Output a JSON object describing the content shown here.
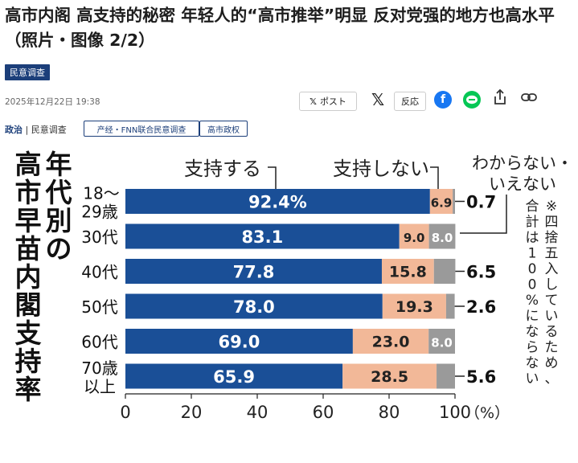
{
  "article": {
    "headline": "高市内阁 高支持的秘密 年轻人的“高市推举”明显 反对党强的地方也高水平（照片・图像 2/2）",
    "category_tag": "民意调查",
    "date": "2025年12月22日 19:38",
    "breadcrumb_section": "政治",
    "breadcrumb_sub": "民意调查",
    "chips": [
      "产经・FNN联合民意调查",
      "高市政权"
    ]
  },
  "share": {
    "post_label": "ポスト",
    "react_label": "反応",
    "icons": [
      "x-icon",
      "facebook-icon",
      "line-icon",
      "share-icon",
      "link-icon"
    ],
    "line_text": "LINE"
  },
  "colors": {
    "support": "#1a4f97",
    "nonsupport": "#f2b898",
    "dontknow": "#9a9a9a",
    "tag_bg": "#1c3f7a"
  },
  "chart_data": {
    "type": "bar",
    "stacked": true,
    "orientation": "horizontal",
    "title": "年代別の高市早苗内閣支持率",
    "categories": [
      "18～29歳",
      "30代",
      "40代",
      "50代",
      "60代",
      "70歳以上"
    ],
    "series": [
      {
        "name": "支持する",
        "values": [
          92.4,
          83.1,
          77.8,
          78.0,
          69.0,
          65.9
        ]
      },
      {
        "name": "支持しない",
        "values": [
          6.9,
          9.0,
          15.8,
          19.3,
          23.0,
          28.5
        ]
      },
      {
        "name": "わからない・いえない",
        "values": [
          0.7,
          8.0,
          6.5,
          2.6,
          8.0,
          5.6
        ]
      }
    ],
    "value_labels": {
      "support": [
        "92.4%",
        "83.1",
        "77.8",
        "78.0",
        "69.0",
        "65.9"
      ],
      "nonsupport": [
        "6.9",
        "9.0",
        "15.8",
        "19.3",
        "23.0",
        "28.5"
      ],
      "dontknow": [
        "0.7",
        "8.0",
        "6.5",
        "2.6",
        "8.0",
        "5.6"
      ]
    },
    "xlim": [
      0,
      100
    ],
    "xticks": [
      "0",
      "20",
      "40",
      "60",
      "80",
      "100"
    ],
    "x_unit": "（%）",
    "note": "※四捨五入しているため、合計は100%にならない"
  }
}
